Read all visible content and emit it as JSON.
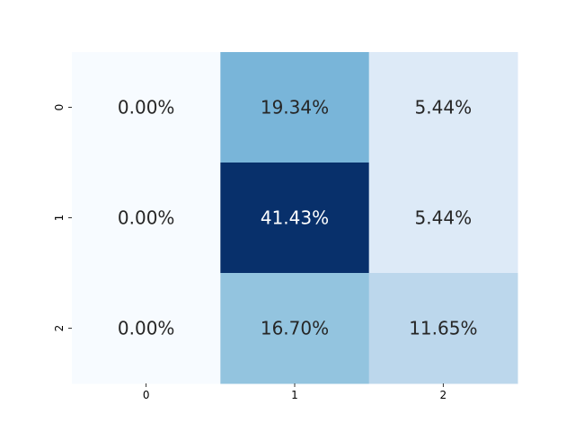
{
  "chart_data": {
    "type": "heatmap",
    "title": "",
    "xlabel": "",
    "ylabel": "",
    "x_categories": [
      "0",
      "1",
      "2"
    ],
    "y_categories": [
      "0",
      "1",
      "2"
    ],
    "values": [
      [
        0.0,
        19.34,
        5.44
      ],
      [
        0.0,
        41.43,
        5.44
      ],
      [
        0.0,
        16.7,
        11.65
      ]
    ],
    "value_labels": [
      [
        "0.00%",
        "19.34%",
        "5.44%"
      ],
      [
        "0.00%",
        "41.43%",
        "5.44%"
      ],
      [
        "0.00%",
        "16.70%",
        "11.65%"
      ]
    ],
    "colormap": "Blues",
    "color_range": [
      0,
      41.43
    ],
    "colorbar": false,
    "grid": false,
    "colors": {
      "light_text": "#ffffff",
      "dark_text": "#262626"
    }
  }
}
